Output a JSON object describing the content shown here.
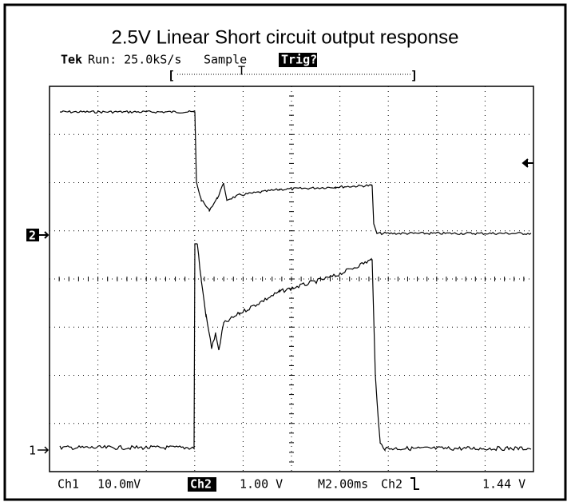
{
  "title": "2.5V Linear Short circuit output response",
  "status": {
    "brand": "Tek",
    "run": "Run: 25.0kS/s",
    "mode": "Sample",
    "trigger": "Trig?"
  },
  "record": {
    "open": "[",
    "trigger_mark": "T",
    "close": "]"
  },
  "markers": {
    "ch2": "2",
    "ch1": "1"
  },
  "readout": {
    "ch1": "Ch1",
    "ch1_scale": "10.0mV",
    "ch2": "Ch2",
    "ch2_scale": "1.00 V",
    "timebase": "M2.00ms",
    "trig_source": "Ch2",
    "trig_level": "1.44 V"
  }
}
